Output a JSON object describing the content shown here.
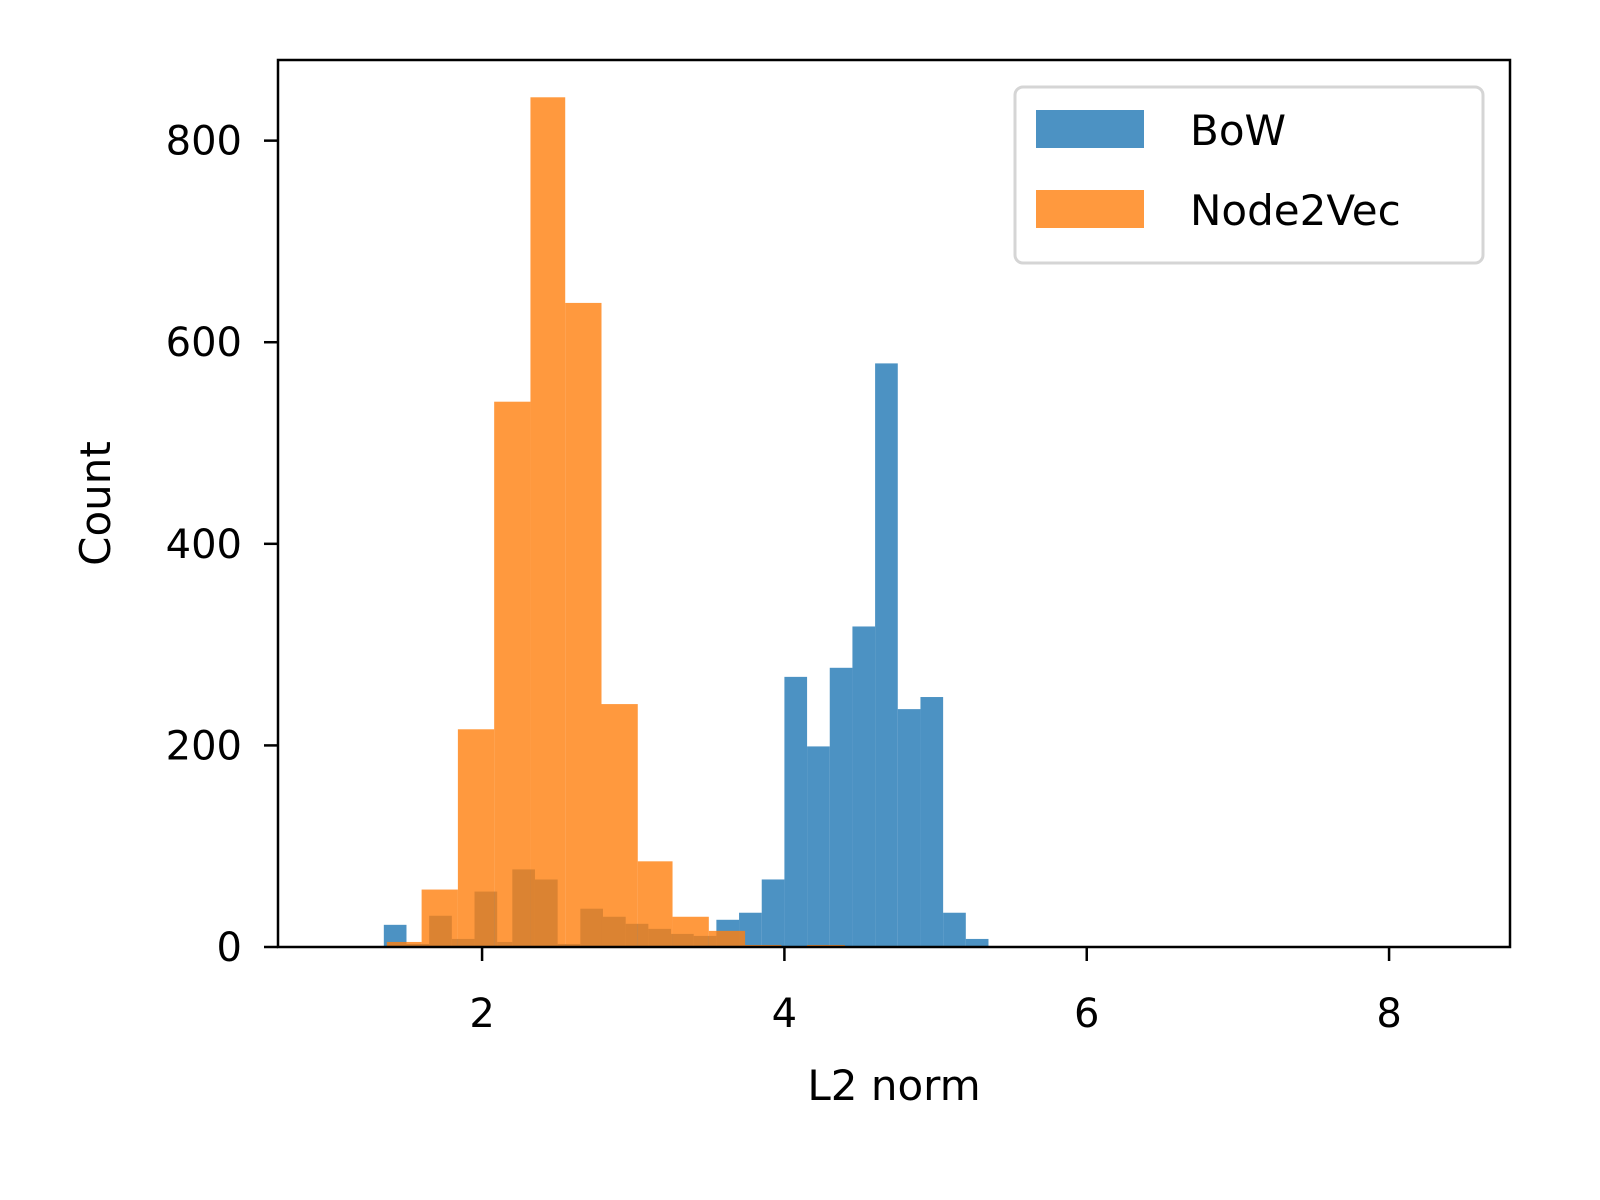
{
  "chart_data": {
    "type": "bar",
    "subtype": "histogram",
    "xlabel": "L2 norm",
    "ylabel": "Count",
    "xlim": [
      0.65,
      8.8
    ],
    "ylim": [
      0,
      880
    ],
    "x_ticks": [
      2,
      4,
      6,
      8
    ],
    "y_ticks": [
      0,
      200,
      400,
      600,
      800
    ],
    "grid": false,
    "legend_position": "top-right",
    "series": [
      {
        "name": "BoW",
        "color": "#1f77b4",
        "opacity": 0.8,
        "bins": [
          {
            "x0": 1.35,
            "x1": 1.5,
            "count": 22
          },
          {
            "x0": 1.5,
            "x1": 1.65,
            "count": 3
          },
          {
            "x0": 1.65,
            "x1": 1.8,
            "count": 31
          },
          {
            "x0": 1.8,
            "x1": 1.95,
            "count": 8
          },
          {
            "x0": 1.95,
            "x1": 2.1,
            "count": 55
          },
          {
            "x0": 2.1,
            "x1": 2.2,
            "count": 5
          },
          {
            "x0": 2.2,
            "x1": 2.35,
            "count": 77
          },
          {
            "x0": 2.35,
            "x1": 2.5,
            "count": 67
          },
          {
            "x0": 2.5,
            "x1": 2.65,
            "count": 3
          },
          {
            "x0": 2.65,
            "x1": 2.8,
            "count": 38
          },
          {
            "x0": 2.8,
            "x1": 2.95,
            "count": 30
          },
          {
            "x0": 2.95,
            "x1": 3.1,
            "count": 23
          },
          {
            "x0": 3.1,
            "x1": 3.25,
            "count": 18
          },
          {
            "x0": 3.25,
            "x1": 3.4,
            "count": 13
          },
          {
            "x0": 3.4,
            "x1": 3.55,
            "count": 11
          },
          {
            "x0": 3.55,
            "x1": 3.7,
            "count": 27
          },
          {
            "x0": 3.7,
            "x1": 3.85,
            "count": 34
          },
          {
            "x0": 3.85,
            "x1": 4.0,
            "count": 67
          },
          {
            "x0": 4.0,
            "x1": 4.15,
            "count": 268
          },
          {
            "x0": 4.15,
            "x1": 4.3,
            "count": 199
          },
          {
            "x0": 4.3,
            "x1": 4.45,
            "count": 277
          },
          {
            "x0": 4.45,
            "x1": 4.6,
            "count": 318
          },
          {
            "x0": 4.6,
            "x1": 4.75,
            "count": 579
          },
          {
            "x0": 4.75,
            "x1": 4.9,
            "count": 236
          },
          {
            "x0": 4.9,
            "x1": 5.05,
            "count": 248
          },
          {
            "x0": 5.05,
            "x1": 5.2,
            "count": 34
          },
          {
            "x0": 5.2,
            "x1": 5.35,
            "count": 8
          }
        ]
      },
      {
        "name": "Node2Vec",
        "color": "#ff7f0e",
        "opacity": 0.8,
        "bins": [
          {
            "x0": 1.37,
            "x1": 1.6,
            "count": 5
          },
          {
            "x0": 1.6,
            "x1": 1.84,
            "count": 57
          },
          {
            "x0": 1.84,
            "x1": 2.08,
            "count": 216
          },
          {
            "x0": 2.08,
            "x1": 2.32,
            "count": 541
          },
          {
            "x0": 2.32,
            "x1": 2.55,
            "count": 843
          },
          {
            "x0": 2.55,
            "x1": 2.79,
            "count": 639
          },
          {
            "x0": 2.79,
            "x1": 3.03,
            "count": 241
          },
          {
            "x0": 3.03,
            "x1": 3.26,
            "count": 85
          },
          {
            "x0": 3.26,
            "x1": 3.5,
            "count": 30
          },
          {
            "x0": 3.5,
            "x1": 3.74,
            "count": 16
          },
          {
            "x0": 3.74,
            "x1": 3.98,
            "count": 2
          },
          {
            "x0": 4.15,
            "x1": 4.4,
            "count": 2
          }
        ]
      }
    ]
  }
}
